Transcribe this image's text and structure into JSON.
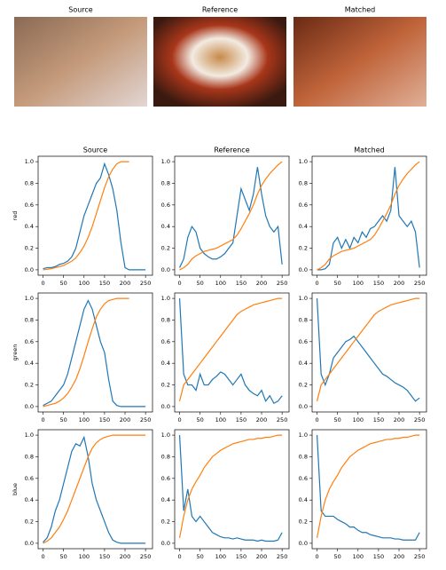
{
  "images": [
    {
      "title": "Source"
    },
    {
      "title": "Reference"
    },
    {
      "title": "Matched"
    }
  ],
  "chart_data": [
    {
      "type": "line",
      "title": "Source",
      "ylabel": "red",
      "x": [
        0,
        10,
        20,
        30,
        40,
        50,
        60,
        70,
        80,
        90,
        100,
        110,
        120,
        130,
        140,
        150,
        160,
        170,
        180,
        190,
        200,
        210,
        220,
        230,
        240,
        250
      ],
      "series": [
        {
          "color": "#1f77b4",
          "values": [
            0.01,
            0.02,
            0.02,
            0.03,
            0.05,
            0.06,
            0.08,
            0.12,
            0.2,
            0.35,
            0.5,
            0.6,
            0.7,
            0.8,
            0.85,
            0.98,
            0.88,
            0.75,
            0.55,
            0.25,
            0.02,
            0,
            0,
            0,
            0,
            0
          ]
        },
        {
          "color": "#ff7f0e",
          "values": [
            0,
            0.005,
            0.01,
            0.02,
            0.03,
            0.04,
            0.06,
            0.08,
            0.11,
            0.16,
            0.22,
            0.3,
            0.4,
            0.52,
            0.64,
            0.76,
            0.86,
            0.93,
            0.98,
            1,
            1,
            1,
            null,
            null,
            null,
            null
          ]
        }
      ],
      "xlim": [
        -12,
        267
      ],
      "ylim": [
        -0.05,
        1.05
      ],
      "xticks": [
        0,
        50,
        100,
        150,
        200,
        250
      ],
      "yticks": [
        {
          "value": 0,
          "label": "0.0"
        },
        {
          "value": 0.2,
          "label": "0.2"
        },
        {
          "value": 0.4,
          "label": "0.4"
        },
        {
          "value": 0.6,
          "label": "0.6"
        },
        {
          "value": 0.8,
          "label": "0.8"
        },
        {
          "value": 1,
          "label": "1.0"
        }
      ]
    },
    {
      "type": "line",
      "title": "Reference",
      "x": [
        0,
        10,
        20,
        30,
        40,
        50,
        60,
        70,
        80,
        90,
        100,
        110,
        120,
        130,
        140,
        150,
        160,
        170,
        180,
        190,
        200,
        210,
        220,
        230,
        240,
        250
      ],
      "series": [
        {
          "color": "#1f77b4",
          "values": [
            0.02,
            0.1,
            0.3,
            0.4,
            0.35,
            0.2,
            0.15,
            0.12,
            0.1,
            0.1,
            0.12,
            0.15,
            0.2,
            0.25,
            0.5,
            0.75,
            0.65,
            0.55,
            0.7,
            0.95,
            0.7,
            0.5,
            0.4,
            0.35,
            0.4,
            0.05
          ]
        },
        {
          "color": "#ff7f0e",
          "values": [
            0,
            0.02,
            0.05,
            0.1,
            0.13,
            0.15,
            0.17,
            0.18,
            0.19,
            0.2,
            0.22,
            0.24,
            0.26,
            0.28,
            0.32,
            0.38,
            0.45,
            0.52,
            0.6,
            0.7,
            0.78,
            0.84,
            0.89,
            0.93,
            0.97,
            1
          ]
        }
      ],
      "xlim": [
        -12,
        267
      ],
      "ylim": [
        -0.05,
        1.05
      ],
      "xticks": [
        0,
        50,
        100,
        150,
        200,
        250
      ],
      "yticks": [
        {
          "value": 0,
          "label": "0.0"
        },
        {
          "value": 0.2,
          "label": "0.2"
        },
        {
          "value": 0.4,
          "label": "0.4"
        },
        {
          "value": 0.6,
          "label": "0.6"
        },
        {
          "value": 0.8,
          "label": "0.8"
        },
        {
          "value": 1,
          "label": "1.0"
        }
      ]
    },
    {
      "type": "line",
      "title": "Matched",
      "x": [
        0,
        10,
        20,
        30,
        40,
        50,
        60,
        70,
        80,
        90,
        100,
        110,
        120,
        130,
        140,
        150,
        160,
        170,
        180,
        190,
        200,
        210,
        220,
        230,
        240,
        250
      ],
      "series": [
        {
          "color": "#1f77b4",
          "values": [
            0,
            0,
            0.01,
            0.05,
            0.25,
            0.3,
            0.2,
            0.28,
            0.2,
            0.3,
            0.25,
            0.35,
            0.3,
            0.38,
            0.4,
            0.45,
            0.5,
            0.45,
            0.55,
            0.95,
            0.5,
            0.45,
            0.4,
            0.45,
            0.35,
            0.02
          ]
        },
        {
          "color": "#ff7f0e",
          "values": [
            0,
            0.02,
            0.05,
            0.1,
            0.13,
            0.15,
            0.17,
            0.18,
            0.19,
            0.2,
            0.22,
            0.24,
            0.26,
            0.28,
            0.32,
            0.38,
            0.45,
            0.52,
            0.6,
            0.7,
            0.78,
            0.84,
            0.89,
            0.93,
            0.97,
            1
          ]
        }
      ],
      "xlim": [
        -12,
        267
      ],
      "ylim": [
        -0.05,
        1.05
      ],
      "xticks": [
        0,
        50,
        100,
        150,
        200,
        250
      ],
      "yticks": [
        {
          "value": 0,
          "label": "0.0"
        },
        {
          "value": 0.2,
          "label": "0.2"
        },
        {
          "value": 0.4,
          "label": "0.4"
        },
        {
          "value": 0.6,
          "label": "0.6"
        },
        {
          "value": 0.8,
          "label": "0.8"
        },
        {
          "value": 1,
          "label": "1.0"
        }
      ]
    },
    {
      "type": "line",
      "ylabel": "green",
      "x": [
        0,
        10,
        20,
        30,
        40,
        50,
        60,
        70,
        80,
        90,
        100,
        110,
        120,
        130,
        140,
        150,
        160,
        170,
        180,
        190,
        200,
        210,
        220,
        230,
        240,
        250
      ],
      "series": [
        {
          "color": "#1f77b4",
          "values": [
            0.01,
            0.03,
            0.05,
            0.1,
            0.15,
            0.2,
            0.3,
            0.45,
            0.6,
            0.75,
            0.9,
            0.98,
            0.9,
            0.75,
            0.6,
            0.5,
            0.25,
            0.05,
            0.01,
            0,
            0,
            0,
            0,
            0,
            0,
            0
          ]
        },
        {
          "color": "#ff7f0e",
          "values": [
            0,
            0.01,
            0.02,
            0.03,
            0.05,
            0.08,
            0.12,
            0.18,
            0.25,
            0.35,
            0.47,
            0.6,
            0.72,
            0.83,
            0.9,
            0.95,
            0.98,
            0.99,
            1,
            1,
            1,
            1,
            null,
            null,
            null,
            null
          ]
        }
      ],
      "xlim": [
        -12,
        267
      ],
      "ylim": [
        -0.05,
        1.05
      ],
      "xticks": [
        0,
        50,
        100,
        150,
        200,
        250
      ],
      "yticks": [
        {
          "value": 0,
          "label": "0.0"
        },
        {
          "value": 0.2,
          "label": "0.2"
        },
        {
          "value": 0.4,
          "label": "0.4"
        },
        {
          "value": 0.6,
          "label": "0.6"
        },
        {
          "value": 0.8,
          "label": "0.8"
        },
        {
          "value": 1,
          "label": "1.0"
        }
      ]
    },
    {
      "type": "line",
      "x": [
        0,
        10,
        20,
        30,
        40,
        50,
        60,
        70,
        80,
        90,
        100,
        110,
        120,
        130,
        140,
        150,
        160,
        170,
        180,
        190,
        200,
        210,
        220,
        230,
        240,
        250
      ],
      "series": [
        {
          "color": "#1f77b4",
          "values": [
            1,
            0.3,
            0.2,
            0.2,
            0.15,
            0.3,
            0.2,
            0.2,
            0.25,
            0.28,
            0.32,
            0.3,
            0.25,
            0.2,
            0.25,
            0.3,
            0.2,
            0.15,
            0.12,
            0.1,
            0.15,
            0.05,
            0.1,
            0.03,
            0.05,
            0.1
          ]
        },
        {
          "color": "#ff7f0e",
          "values": [
            0.05,
            0.2,
            0.25,
            0.3,
            0.35,
            0.4,
            0.45,
            0.5,
            0.55,
            0.6,
            0.65,
            0.7,
            0.75,
            0.8,
            0.85,
            0.88,
            0.9,
            0.92,
            0.94,
            0.95,
            0.96,
            0.97,
            0.98,
            0.99,
            1,
            1
          ]
        }
      ],
      "xlim": [
        -12,
        267
      ],
      "ylim": [
        -0.05,
        1.05
      ],
      "xticks": [
        0,
        50,
        100,
        150,
        200,
        250
      ],
      "yticks": [
        {
          "value": 0,
          "label": "0.0"
        },
        {
          "value": 0.2,
          "label": "0.2"
        },
        {
          "value": 0.4,
          "label": "0.4"
        },
        {
          "value": 0.6,
          "label": "0.6"
        },
        {
          "value": 0.8,
          "label": "0.8"
        },
        {
          "value": 1,
          "label": "1.0"
        }
      ]
    },
    {
      "type": "line",
      "x": [
        0,
        10,
        20,
        30,
        40,
        50,
        60,
        70,
        80,
        90,
        100,
        110,
        120,
        130,
        140,
        150,
        160,
        170,
        180,
        190,
        200,
        210,
        220,
        230,
        240,
        250
      ],
      "series": [
        {
          "color": "#1f77b4",
          "values": [
            1,
            0.3,
            0.2,
            0.3,
            0.45,
            0.5,
            0.55,
            0.6,
            0.62,
            0.65,
            0.6,
            0.55,
            0.5,
            0.45,
            0.4,
            0.35,
            0.3,
            0.28,
            0.25,
            0.22,
            0.2,
            0.18,
            0.15,
            0.1,
            0.05,
            0.08
          ]
        },
        {
          "color": "#ff7f0e",
          "values": [
            0.05,
            0.2,
            0.25,
            0.3,
            0.35,
            0.4,
            0.45,
            0.5,
            0.55,
            0.6,
            0.65,
            0.7,
            0.75,
            0.8,
            0.85,
            0.88,
            0.9,
            0.92,
            0.94,
            0.95,
            0.96,
            0.97,
            0.98,
            0.99,
            1,
            1
          ]
        }
      ],
      "xlim": [
        -12,
        267
      ],
      "ylim": [
        -0.05,
        1.05
      ],
      "xticks": [
        0,
        50,
        100,
        150,
        200,
        250
      ],
      "yticks": [
        {
          "value": 0,
          "label": "0.0"
        },
        {
          "value": 0.2,
          "label": "0.2"
        },
        {
          "value": 0.4,
          "label": "0.4"
        },
        {
          "value": 0.6,
          "label": "0.6"
        },
        {
          "value": 0.8,
          "label": "0.8"
        },
        {
          "value": 1,
          "label": "1.0"
        }
      ]
    },
    {
      "type": "line",
      "ylabel": "blue",
      "x": [
        0,
        10,
        20,
        30,
        40,
        50,
        60,
        70,
        80,
        90,
        100,
        110,
        120,
        130,
        140,
        150,
        160,
        170,
        180,
        190,
        200,
        210,
        220,
        230,
        240,
        250
      ],
      "series": [
        {
          "color": "#1f77b4",
          "values": [
            0.01,
            0.05,
            0.15,
            0.3,
            0.4,
            0.55,
            0.7,
            0.85,
            0.92,
            0.9,
            0.98,
            0.8,
            0.55,
            0.4,
            0.3,
            0.2,
            0.1,
            0.03,
            0.01,
            0,
            0,
            0,
            0,
            0,
            0,
            0
          ]
        },
        {
          "color": "#ff7f0e",
          "values": [
            0,
            0.02,
            0.05,
            0.1,
            0.15,
            0.22,
            0.3,
            0.4,
            0.5,
            0.6,
            0.7,
            0.8,
            0.88,
            0.93,
            0.96,
            0.98,
            0.99,
            1,
            1,
            1,
            1,
            1,
            1,
            1,
            1,
            1
          ]
        }
      ],
      "xlim": [
        -12,
        267
      ],
      "ylim": [
        -0.05,
        1.05
      ],
      "xticks": [
        0,
        50,
        100,
        150,
        200,
        250
      ],
      "yticks": [
        {
          "value": 0,
          "label": "0.0"
        },
        {
          "value": 0.2,
          "label": "0.2"
        },
        {
          "value": 0.4,
          "label": "0.4"
        },
        {
          "value": 0.6,
          "label": "0.6"
        },
        {
          "value": 0.8,
          "label": "0.8"
        },
        {
          "value": 1,
          "label": "1.0"
        }
      ]
    },
    {
      "type": "line",
      "x": [
        0,
        10,
        20,
        30,
        40,
        50,
        60,
        70,
        80,
        90,
        100,
        110,
        120,
        130,
        140,
        150,
        160,
        170,
        180,
        190,
        200,
        210,
        220,
        230,
        240,
        250
      ],
      "series": [
        {
          "color": "#1f77b4",
          "values": [
            1,
            0.3,
            0.5,
            0.25,
            0.2,
            0.25,
            0.2,
            0.15,
            0.1,
            0.08,
            0.06,
            0.05,
            0.05,
            0.04,
            0.05,
            0.04,
            0.03,
            0.03,
            0.03,
            0.02,
            0.03,
            0.02,
            0.02,
            0.02,
            0.03,
            0.1
          ]
        },
        {
          "color": "#ff7f0e",
          "values": [
            0.05,
            0.25,
            0.4,
            0.5,
            0.57,
            0.63,
            0.7,
            0.75,
            0.8,
            0.83,
            0.86,
            0.88,
            0.9,
            0.92,
            0.93,
            0.94,
            0.95,
            0.96,
            0.96,
            0.97,
            0.97,
            0.98,
            0.98,
            0.99,
            1,
            1
          ]
        }
      ],
      "xlim": [
        -12,
        267
      ],
      "ylim": [
        -0.05,
        1.05
      ],
      "xticks": [
        0,
        50,
        100,
        150,
        200,
        250
      ],
      "yticks": [
        {
          "value": 0,
          "label": "0.0"
        },
        {
          "value": 0.2,
          "label": "0.2"
        },
        {
          "value": 0.4,
          "label": "0.4"
        },
        {
          "value": 0.6,
          "label": "0.6"
        },
        {
          "value": 0.8,
          "label": "0.8"
        },
        {
          "value": 1,
          "label": "1.0"
        }
      ]
    },
    {
      "type": "line",
      "x": [
        0,
        10,
        20,
        30,
        40,
        50,
        60,
        70,
        80,
        90,
        100,
        110,
        120,
        130,
        140,
        150,
        160,
        170,
        180,
        190,
        200,
        210,
        220,
        230,
        240,
        250
      ],
      "series": [
        {
          "color": "#1f77b4",
          "values": [
            1,
            0.3,
            0.25,
            0.25,
            0.25,
            0.22,
            0.2,
            0.18,
            0.15,
            0.15,
            0.12,
            0.1,
            0.1,
            0.08,
            0.07,
            0.06,
            0.05,
            0.05,
            0.05,
            0.04,
            0.04,
            0.03,
            0.03,
            0.03,
            0.03,
            0.1
          ]
        },
        {
          "color": "#ff7f0e",
          "values": [
            0.05,
            0.25,
            0.4,
            0.5,
            0.57,
            0.63,
            0.7,
            0.75,
            0.8,
            0.83,
            0.86,
            0.88,
            0.9,
            0.92,
            0.93,
            0.94,
            0.95,
            0.96,
            0.96,
            0.97,
            0.97,
            0.98,
            0.98,
            0.99,
            1,
            1
          ]
        }
      ],
      "xlim": [
        -12,
        267
      ],
      "ylim": [
        -0.05,
        1.05
      ],
      "xticks": [
        0,
        50,
        100,
        150,
        200,
        250
      ],
      "yticks": [
        {
          "value": 0,
          "label": "0.0"
        },
        {
          "value": 0.2,
          "label": "0.2"
        },
        {
          "value": 0.4,
          "label": "0.4"
        },
        {
          "value": 0.6,
          "label": "0.6"
        },
        {
          "value": 0.8,
          "label": "0.8"
        },
        {
          "value": 1,
          "label": "1.0"
        }
      ]
    }
  ]
}
